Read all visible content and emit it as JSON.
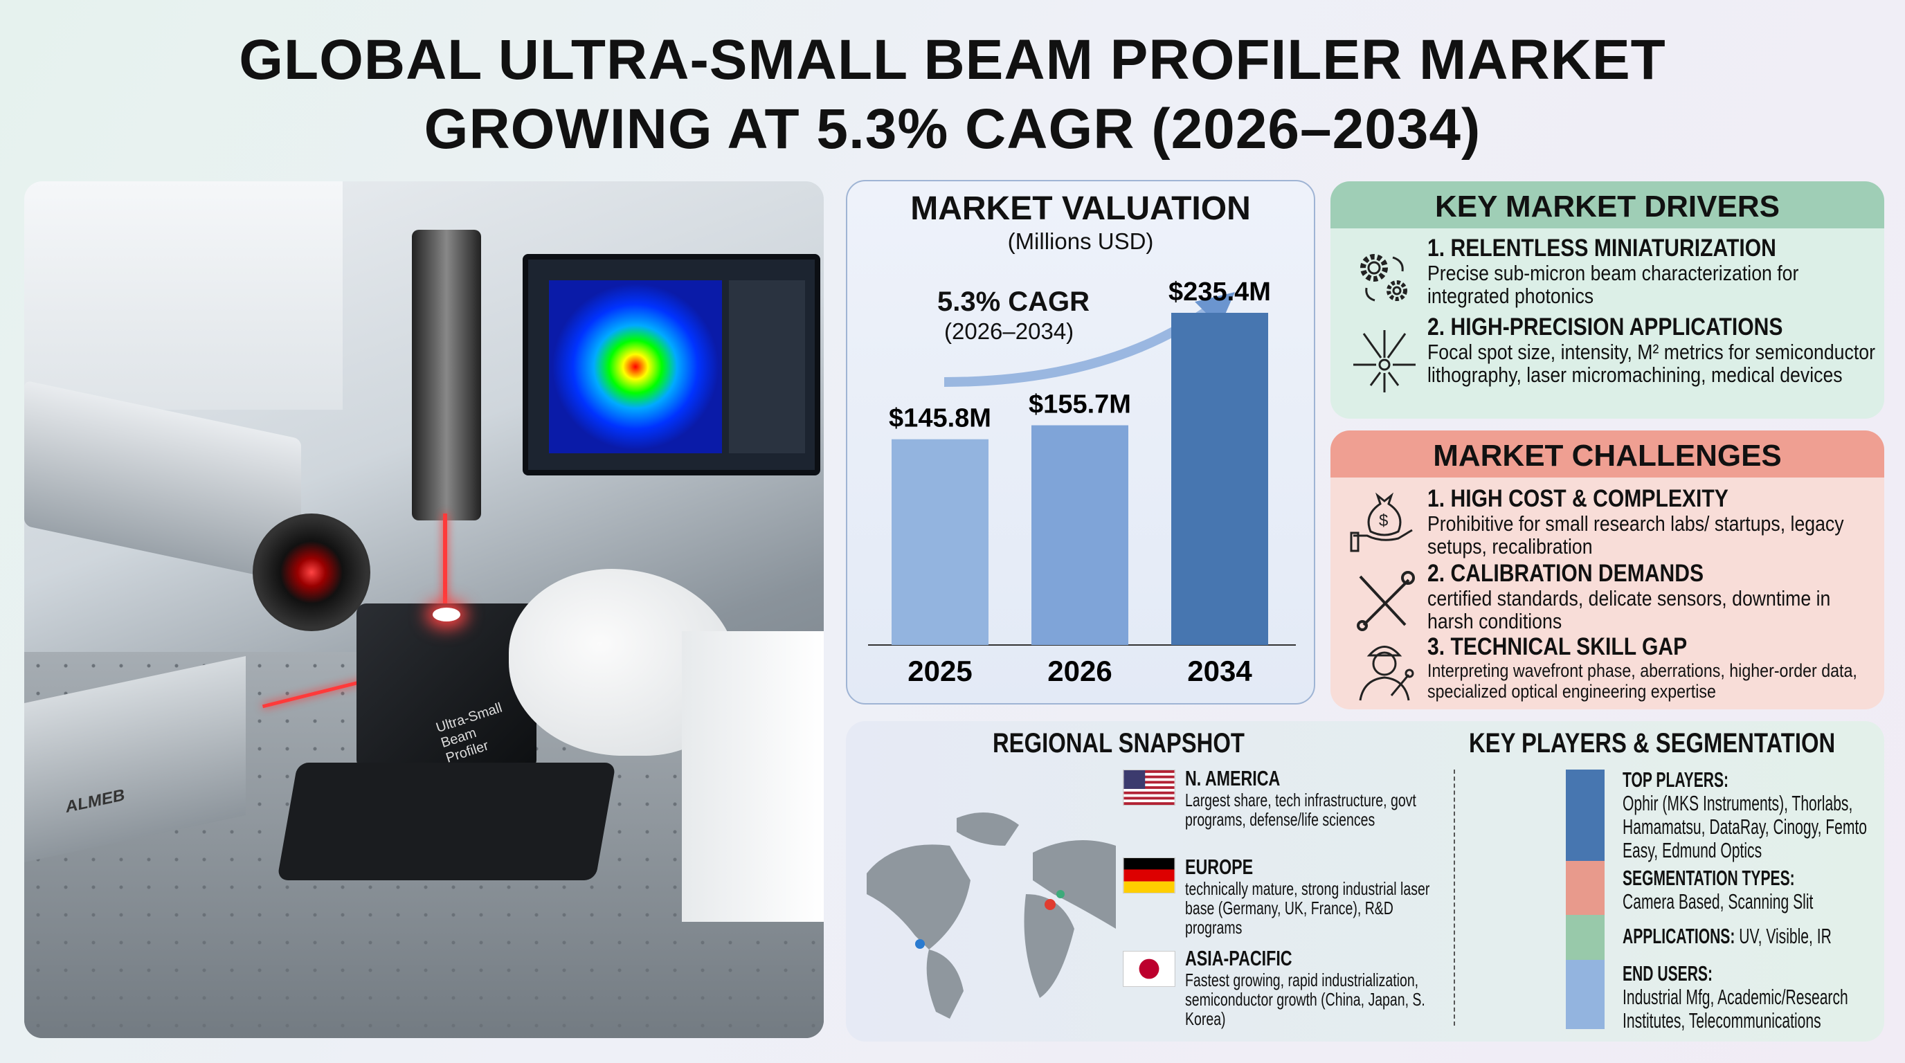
{
  "title": {
    "line1": "GLOBAL ULTRA-SMALL BEAM PROFILER MARKET",
    "line2": "GROWING AT 5.3% CAGR (2026–2034)"
  },
  "photo": {
    "device_label": "Ultra-Small Beam Profiler",
    "camera_label": "ALMEB"
  },
  "valuation": {
    "title": "MARKET VALUATION",
    "subtitle": "(Millions USD)",
    "cagr_label": "5.3% CAGR",
    "cagr_period": "(2026–2034)"
  },
  "chart_data": {
    "type": "bar",
    "title": "MARKET VALUATION",
    "ylabel": "Millions USD",
    "categories": [
      "2025",
      "2026",
      "2034"
    ],
    "values": [
      145.8,
      155.7,
      235.4
    ],
    "data_labels": [
      "$145.8M",
      "$155.7M",
      "$235.4M"
    ],
    "ylim": [
      0,
      235.4
    ],
    "colors": [
      "#93b4df",
      "#7fa4d8",
      "#4776b0"
    ]
  },
  "drivers": {
    "title": "KEY MARKET DRIVERS",
    "items": [
      {
        "heading": "1. RELENTLESS MINIATURIZATION",
        "text": "Precise sub-micron beam characterization for integrated photonics"
      },
      {
        "heading": "2. HIGH-PRECISION APPLICATIONS",
        "text": "Focal spot size, intensity, M² metrics for semiconductor lithography, laser micromachining, medical devices"
      }
    ]
  },
  "challenges": {
    "title": "MARKET CHALLENGES",
    "items": [
      {
        "heading": "1. HIGH COST & COMPLEXITY",
        "text": "Prohibitive for small research labs/ startups, legacy setups, recalibration"
      },
      {
        "heading": "2. CALIBRATION DEMANDS",
        "text": "certified standards, delicate sensors, downtime in harsh conditions"
      },
      {
        "heading": "3. TECHNICAL SKILL GAP",
        "text": "Interpreting wavefront phase, aberrations, higher-order data, specialized optical engineering expertise"
      }
    ]
  },
  "regional": {
    "title": "REGIONAL SNAPSHOT",
    "regions": [
      {
        "name": "N. AMERICA",
        "text": "Largest share, tech infrastructure, govt programs, defense/life sciences"
      },
      {
        "name": "EUROPE",
        "text": "technically mature, strong industrial laser base (Germany, UK, France), R&D programs"
      },
      {
        "name": "ASIA-PACIFIC",
        "text": "Fastest growing, rapid industrialization, semiconductor growth (China, Japan, S. Korea)"
      }
    ]
  },
  "players": {
    "title": "KEY PLAYERS & SEGMENTATION",
    "top_label": "TOP PLAYERS:",
    "top_text": "Ophir (MKS Instruments), Thorlabs, Hamamatsu, DataRay, Cinogy, Femto Easy, Edmund Optics",
    "seg_label": "SEGMENTATION TYPES:",
    "seg_text": "Camera Based, Scanning Slit",
    "app_label": "APPLICATIONS:",
    "app_text": "UV, Visible, IR",
    "end_label": "END USERS:",
    "end_text": "Industrial Mfg, Academic/Research Institutes, Telecommunications"
  }
}
